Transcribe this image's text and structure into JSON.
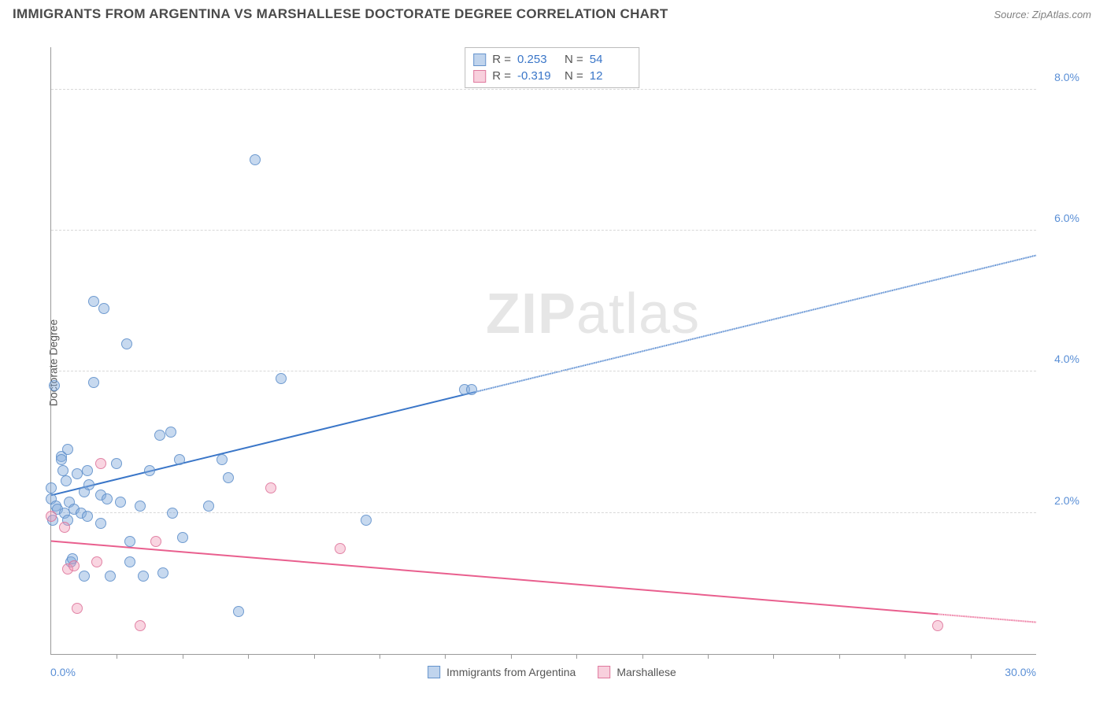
{
  "header": {
    "title": "IMMIGRANTS FROM ARGENTINA VS MARSHALLESE DOCTORATE DEGREE CORRELATION CHART",
    "source": "Source: ZipAtlas.com"
  },
  "ylabel": "Doctorate Degree",
  "watermark": {
    "bold": "ZIP",
    "light": "atlas"
  },
  "axis": {
    "xmin": 0.0,
    "xmax": 30.0,
    "ymin": 0.0,
    "ymax": 8.6,
    "xlabel_left": "0.0%",
    "xlabel_right": "30.0%",
    "yticks": [
      {
        "v": 2.0,
        "label": "2.0%"
      },
      {
        "v": 4.0,
        "label": "4.0%"
      },
      {
        "v": 6.0,
        "label": "6.0%"
      },
      {
        "v": 8.0,
        "label": "8.0%"
      }
    ],
    "xticks_minor": [
      2,
      4,
      6,
      8,
      10,
      12,
      14,
      16,
      18,
      20,
      22,
      24,
      26,
      28
    ]
  },
  "stats": {
    "series_a": {
      "r_label": "R =",
      "r": "0.253",
      "n_label": "N =",
      "n": "54"
    },
    "series_b": {
      "r_label": "R =",
      "r": "-0.319",
      "n_label": "N =",
      "n": "12"
    }
  },
  "legend": {
    "series_a": "Immigrants from Argentina",
    "series_b": "Marshallese"
  },
  "colors": {
    "series_a_line": "#3a76c8",
    "series_b_line": "#e95f8e",
    "grid": "#d8d8d8",
    "axis": "#999999",
    "ytick_text": "#5a8fd6"
  },
  "series_a": {
    "points": [
      [
        0.0,
        2.2
      ],
      [
        0.0,
        2.35
      ],
      [
        0.05,
        1.9
      ],
      [
        0.1,
        3.8
      ],
      [
        0.15,
        2.1
      ],
      [
        0.2,
        2.05
      ],
      [
        0.3,
        2.8
      ],
      [
        0.3,
        2.75
      ],
      [
        0.35,
        2.6
      ],
      [
        0.4,
        2.0
      ],
      [
        0.45,
        2.45
      ],
      [
        0.5,
        2.9
      ],
      [
        0.5,
        1.9
      ],
      [
        0.55,
        2.15
      ],
      [
        0.6,
        1.3
      ],
      [
        0.65,
        1.35
      ],
      [
        0.7,
        2.05
      ],
      [
        0.8,
        2.55
      ],
      [
        0.9,
        2.0
      ],
      [
        1.0,
        1.1
      ],
      [
        1.0,
        2.3
      ],
      [
        1.1,
        1.95
      ],
      [
        1.1,
        2.6
      ],
      [
        1.15,
        2.4
      ],
      [
        1.3,
        5.0
      ],
      [
        1.3,
        3.85
      ],
      [
        1.5,
        2.25
      ],
      [
        1.5,
        1.85
      ],
      [
        1.6,
        4.9
      ],
      [
        1.7,
        2.2
      ],
      [
        1.8,
        1.1
      ],
      [
        2.0,
        2.7
      ],
      [
        2.1,
        2.15
      ],
      [
        2.3,
        4.4
      ],
      [
        2.4,
        1.3
      ],
      [
        2.4,
        1.6
      ],
      [
        2.7,
        2.1
      ],
      [
        2.8,
        1.1
      ],
      [
        3.0,
        2.6
      ],
      [
        3.3,
        3.1
      ],
      [
        3.4,
        1.15
      ],
      [
        3.65,
        3.15
      ],
      [
        3.7,
        2.0
      ],
      [
        3.9,
        2.75
      ],
      [
        4.0,
        1.65
      ],
      [
        4.8,
        2.1
      ],
      [
        5.2,
        2.75
      ],
      [
        5.4,
        2.5
      ],
      [
        5.7,
        0.6
      ],
      [
        6.2,
        7.0
      ],
      [
        7.0,
        3.9
      ],
      [
        9.6,
        1.9
      ],
      [
        12.6,
        3.75
      ],
      [
        12.8,
        3.75
      ]
    ],
    "trend": {
      "x1": 0.0,
      "y1": 2.25,
      "x2": 30.0,
      "y2": 5.65,
      "solid_until_x": 12.9
    }
  },
  "series_b": {
    "points": [
      [
        0.0,
        1.95
      ],
      [
        0.4,
        1.8
      ],
      [
        0.5,
        1.2
      ],
      [
        0.7,
        1.25
      ],
      [
        0.8,
        0.65
      ],
      [
        1.4,
        1.3
      ],
      [
        1.5,
        2.7
      ],
      [
        2.7,
        0.4
      ],
      [
        3.2,
        1.6
      ],
      [
        6.7,
        2.35
      ],
      [
        8.8,
        1.5
      ],
      [
        27.0,
        0.4
      ]
    ],
    "trend": {
      "x1": 0.0,
      "y1": 1.6,
      "x2": 30.0,
      "y2": 0.45,
      "solid_until_x": 27.0
    }
  }
}
